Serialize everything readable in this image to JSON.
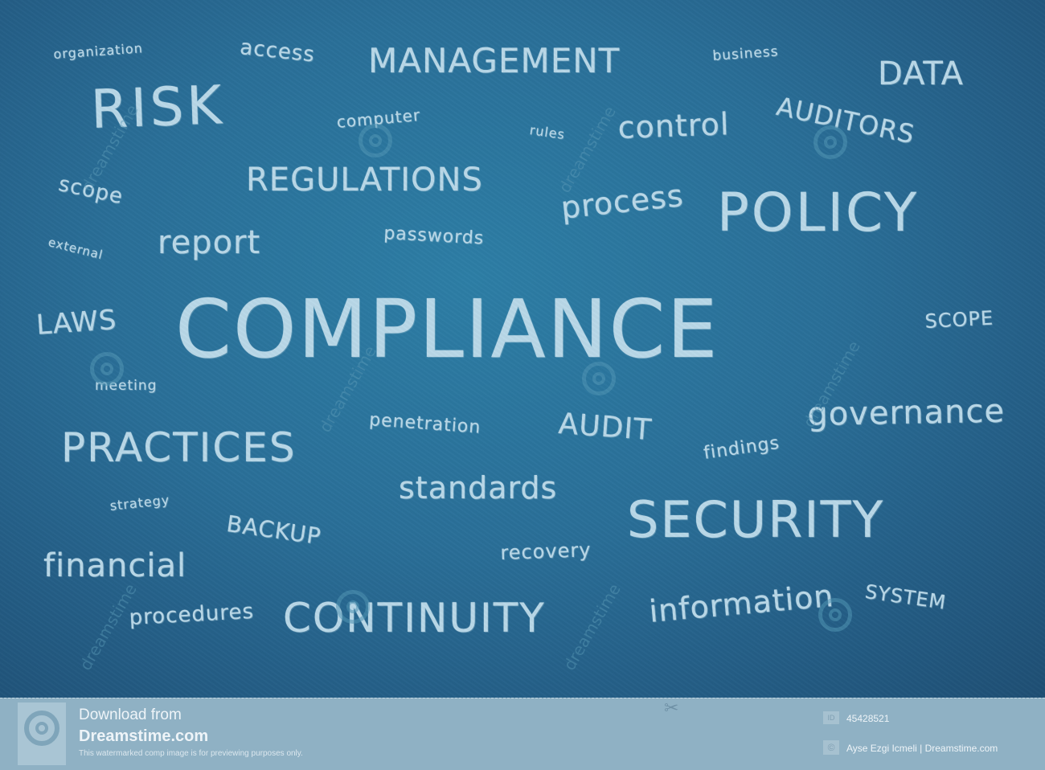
{
  "words": {
    "organization": "organization",
    "access": "access",
    "management": "MANAGEMENT",
    "business": "business",
    "data": "DATA",
    "risk": "RISK",
    "computer": "computer",
    "rules": "rules",
    "control": "control",
    "auditors": "AUDITORS",
    "scope_lower": "scope",
    "regulations": "REGULATIONS",
    "process": "process",
    "policy": "POLICY",
    "external": "external",
    "report": "report",
    "passwords": "passwords",
    "laws": "LAWS",
    "compliance": "COMPLIANCE",
    "scope_upper": "SCOPE",
    "meeting": "meeting",
    "penetration": "penetration",
    "audit": "AUDIT",
    "governance": "governance",
    "practices": "PRACTICES",
    "findings": "findings",
    "standards": "standards",
    "strategy": "strategy",
    "backup": "BACKUP",
    "security": "SECURITY",
    "recovery": "recovery",
    "financial": "financial",
    "system": "SYSTEM",
    "information": "information",
    "procedures": "procedures",
    "continuity": "CONTINUITY"
  },
  "watermark": {
    "text": "dreamstime"
  },
  "footer": {
    "download_from": "Download from",
    "site": "Dreamstime.com",
    "notice": "This watermarked comp image is for previewing purposes only.",
    "id_label": "ID",
    "image_id": "45428521",
    "copyright_symbol": "©",
    "credit": "Ayse Ezgi Icmeli | Dreamstime.com"
  },
  "colors": {
    "chalk": "#b9d8e8",
    "board": "#2a6f98",
    "footer": "#8fb1c4"
  }
}
